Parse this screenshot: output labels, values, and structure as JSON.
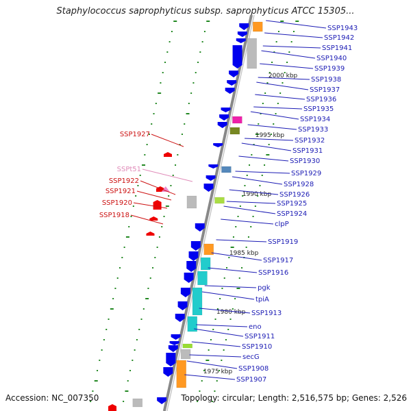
{
  "title": "Staphylococcus saprophyticus subsp. saprophyticus ATCC 15305...",
  "footer": {
    "accession": "Accession: NC_007350",
    "topology": "Topology: circular; Length: 2,516,575 bp; Genes: 2,526"
  },
  "colors": {
    "forward_gene": "#0000ee",
    "reverse_gene": "#ee0000",
    "trna": "#ee88cc",
    "orange_feature": "#ff9922",
    "cyan_feature": "#22cccc",
    "gray_feature": "#bbbbbb",
    "ticks": "#228822",
    "backbone": "#888888",
    "forward_label": "#1a1ab4",
    "reverse_label": "#cc1111",
    "trna_label": "#e08ab8"
  },
  "scale_labels": [
    "2000 kbp",
    "1995 kbp",
    "1990 kbp",
    "1985 kbp",
    "1980 kbp",
    "1975 kbp"
  ],
  "right_labels": [
    "SSP1943",
    "SSP1942",
    "SSP1941",
    "SSP1940",
    "SSP1939",
    "SSP1938",
    "SSP1937",
    "SSP1936",
    "SSP1935",
    "SSP1934",
    "SSP1933",
    "SSP1932",
    "SSP1931",
    "SSP1930",
    "SSP1929",
    "SSP1928",
    "SSP1926",
    "SSP1925",
    "SSP1924",
    "clpP",
    "SSP1919",
    "SSP1917",
    "SSP1916",
    "pgk",
    "tpiA",
    "SSP1913",
    "eno",
    "SSP1911",
    "SSP1910",
    "secG",
    "SSP1908",
    "SSP1907"
  ],
  "left_labels": [
    "SSP1927",
    "SSPt51",
    "SSP1922",
    "SSP1921",
    "SSP1920",
    "SSP1918"
  ]
}
